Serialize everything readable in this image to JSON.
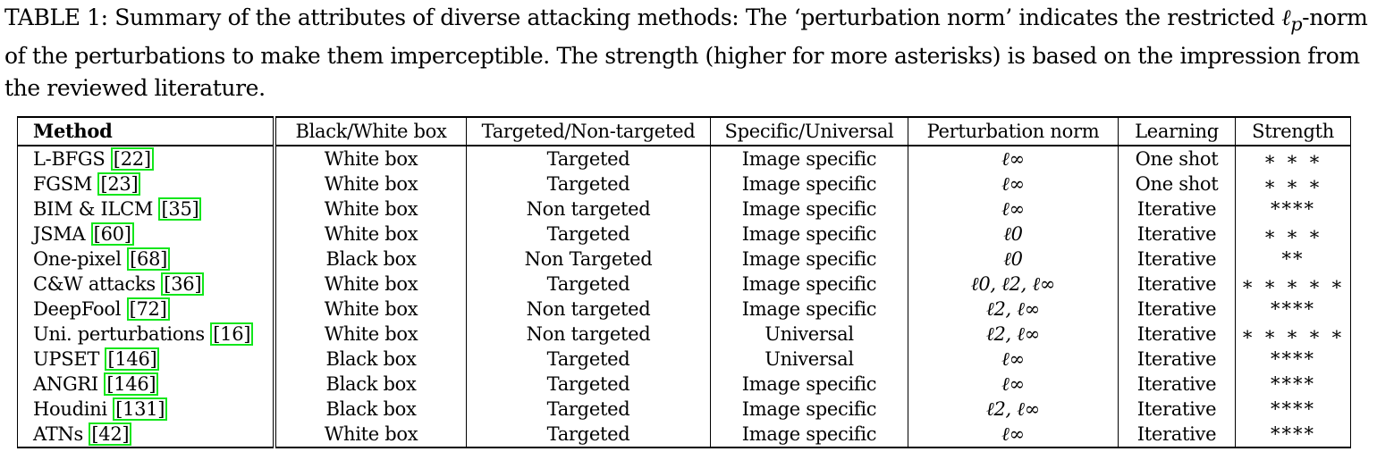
{
  "caption": {
    "text_1": "TABLE 1: Summary of the attributes of diverse attacking methods: The ‘perturbation norm’ indicates the restricted ",
    "math": "ℓ",
    "math_sub": "p",
    "text_2": "-norm of the perturbations to make them imperceptible. The strength (higher for more asterisks) is based on the impression from the reviewed literature."
  },
  "table": {
    "headers": [
      "Method",
      "Black/White box",
      "Targeted/Non-targeted",
      "Specific/Universal",
      "Perturbation norm",
      "Learning",
      "Strength"
    ],
    "rows": [
      {
        "method": "L-BFGS",
        "ref": "22",
        "box": "White box",
        "target": "Targeted",
        "scope": "Image specific",
        "norm": "ℓ∞",
        "learning": "One shot",
        "strength": "∗ ∗ ∗"
      },
      {
        "method": "FGSM",
        "ref": "23",
        "box": "White box",
        "target": "Targeted",
        "scope": "Image specific",
        "norm": "ℓ∞",
        "learning": "One shot",
        "strength": "∗ ∗ ∗"
      },
      {
        "method": "BIM & ILCM",
        "ref": "35",
        "box": "White box",
        "target": "Non targeted",
        "scope": "Image specific",
        "norm": "ℓ∞",
        "learning": "Iterative",
        "strength": "****"
      },
      {
        "method": "JSMA",
        "ref": "60",
        "box": "White box",
        "target": "Targeted",
        "scope": "Image specific",
        "norm": "ℓ0",
        "learning": "Iterative",
        "strength": "∗ ∗ ∗"
      },
      {
        "method": "One-pixel",
        "ref": "68",
        "box": "Black box",
        "target": "Non Targeted",
        "scope": "Image specific",
        "norm": "ℓ0",
        "learning": "Iterative",
        "strength": "**"
      },
      {
        "method": "C&W attacks",
        "ref": "36",
        "box": "White box",
        "target": "Targeted",
        "scope": "Image specific",
        "norm": "ℓ0, ℓ2, ℓ∞",
        "learning": "Iterative",
        "strength": "∗ ∗ ∗ ∗ ∗"
      },
      {
        "method": "DeepFool",
        "ref": "72",
        "box": "White box",
        "target": "Non targeted",
        "scope": "Image specific",
        "norm": "ℓ2, ℓ∞",
        "learning": "Iterative",
        "strength": "****"
      },
      {
        "method": "Uni. perturbations",
        "ref": "16",
        "box": "White box",
        "target": "Non targeted",
        "scope": "Universal",
        "norm": "ℓ2, ℓ∞",
        "learning": "Iterative",
        "strength": "∗ ∗ ∗ ∗ ∗"
      },
      {
        "method": "UPSET",
        "ref": "146",
        "box": "Black box",
        "target": "Targeted",
        "scope": "Universal",
        "norm": "ℓ∞",
        "learning": "Iterative",
        "strength": "****"
      },
      {
        "method": "ANGRI",
        "ref": "146",
        "box": "Black box",
        "target": "Targeted",
        "scope": "Image specific",
        "norm": "ℓ∞",
        "learning": "Iterative",
        "strength": "****"
      },
      {
        "method": "Houdini",
        "ref": "131",
        "box": "Black box",
        "target": "Targeted",
        "scope": "Image specific",
        "norm": "ℓ2, ℓ∞",
        "learning": "Iterative",
        "strength": "****"
      },
      {
        "method": "ATNs",
        "ref": "42",
        "box": "White box",
        "target": "Targeted",
        "scope": "Image specific",
        "norm": "ℓ∞",
        "learning": "Iterative",
        "strength": "****"
      }
    ]
  },
  "colors": {
    "citation_box": "#12e61b",
    "text": "#000000"
  }
}
